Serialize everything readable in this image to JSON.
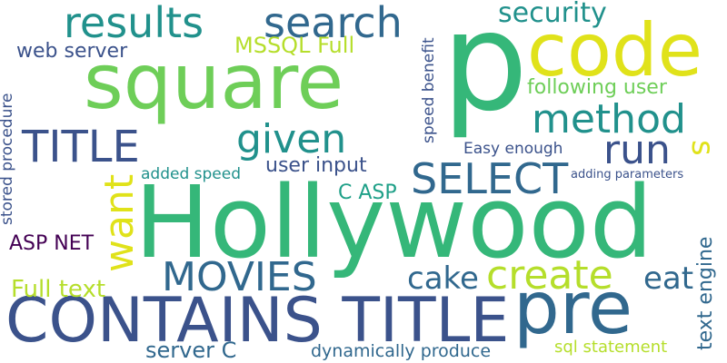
{
  "words": {
    "p": "p",
    "hollywood": "Hollywood",
    "square": "square",
    "code": "code",
    "pre": "pre",
    "contains_title": "CONTAINS TITLE",
    "results": "results",
    "search": "search",
    "method": "method",
    "title": "TITLE",
    "given": "given",
    "run": "run",
    "select": "SELECT",
    "movies": "MOVIES",
    "create": "create",
    "want": "want",
    "s": "s",
    "cake": "cake",
    "eat": "eat",
    "security": "security",
    "mssql_full": "MSSQL Full",
    "web_server": "web server",
    "following_user": "following user",
    "user_input": "user input",
    "c_asp": "C ASP",
    "asp_net": "ASP NET",
    "full_text": "Full text",
    "server_c": "server C",
    "dynamically_produce": "dynamically produce",
    "sql_statement": "sql statement",
    "easy_enough": "Easy enough",
    "added_speed": "added speed",
    "adding_parameters": "adding parameters",
    "stored_procedure": "stored procedure",
    "speed_benefit": "speed benefit",
    "text_engine": "text engine"
  },
  "colors": {
    "dark_purple": "#440154",
    "indigo": "#3b528b",
    "blue": "#31688e",
    "teal": "#21918c",
    "green_teal": "#1fa088",
    "green": "#35b779",
    "light_green": "#6ece58",
    "yellow_green": "#b5de2b",
    "yellow": "#e0e21a"
  }
}
